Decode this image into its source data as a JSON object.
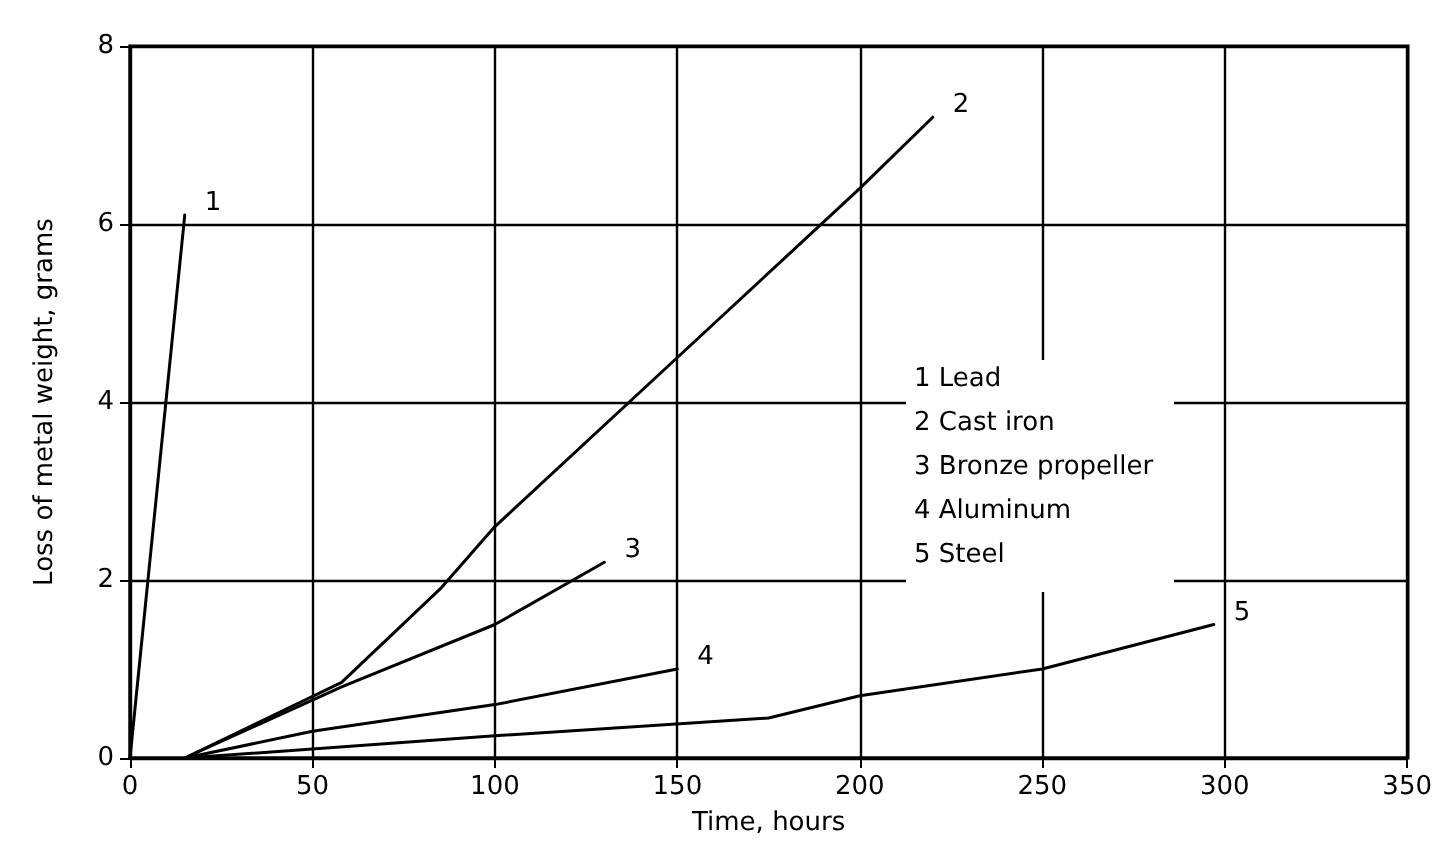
{
  "chart_data": {
    "type": "line",
    "xlabel": "Time, hours",
    "ylabel": "Loss of metal weight, grams",
    "xlim": [
      0,
      350
    ],
    "xticks": [
      0,
      50,
      100,
      150,
      200,
      250,
      300,
      350
    ],
    "ylim": [
      0,
      8
    ],
    "yticks": [
      0,
      2,
      4,
      6,
      8
    ],
    "grid": true,
    "marker": "none",
    "line_style": "solid",
    "series": [
      {
        "name": "1",
        "color": "#000000",
        "x": [
          0,
          15
        ],
        "values": [
          0,
          6.1
        ]
      },
      {
        "name": "2",
        "color": "#000000",
        "x": [
          15,
          58,
          85,
          100,
          150,
          200,
          220
        ],
        "values": [
          0,
          0.85,
          1.9,
          2.6,
          4.5,
          6.4,
          7.2
        ]
      },
      {
        "name": "3",
        "color": "#000000",
        "x": [
          15,
          58,
          100,
          130
        ],
        "values": [
          0,
          0.8,
          1.5,
          2.2
        ]
      },
      {
        "name": "4",
        "color": "#000000",
        "x": [
          15,
          50,
          100,
          150
        ],
        "values": [
          0,
          0.3,
          0.6,
          1.0
        ]
      },
      {
        "name": "5",
        "color": "#000000",
        "x": [
          15,
          50,
          100,
          175,
          200,
          250,
          297
        ],
        "values": [
          0,
          0.1,
          0.25,
          0.45,
          0.7,
          1.0,
          1.5
        ]
      }
    ],
    "annotations": [
      "1 Lead",
      "2 Cast iron",
      "3 Bronze propeller",
      "4 Aluminum",
      "5 Steel"
    ]
  }
}
